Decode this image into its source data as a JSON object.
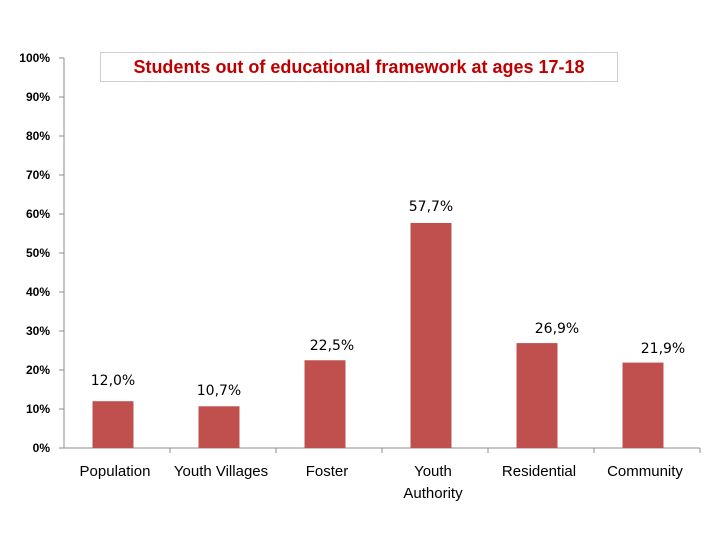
{
  "chart_data": {
    "type": "bar",
    "title": "Students out of educational framework at ages 17-18",
    "categories": [
      [
        "Population"
      ],
      [
        "Youth Villages"
      ],
      [
        "Foster"
      ],
      [
        "Youth",
        "Authority"
      ],
      [
        "Residential"
      ],
      [
        "Community"
      ]
    ],
    "values": [
      12.0,
      10.7,
      22.5,
      57.7,
      26.9,
      21.9
    ],
    "data_labels": [
      "12,0%",
      "10,7%",
      "22,5%",
      "57,7%",
      "26,9%",
      "21,9%"
    ],
    "y_ticks": [
      "0%",
      "10%",
      "20%",
      "30%",
      "40%",
      "50%",
      "60%",
      "70%",
      "80%",
      "90%",
      "100%"
    ],
    "ylim": [
      0,
      100
    ],
    "grid": false,
    "bar_color": "#c0504d",
    "title_color": "#c00000"
  }
}
